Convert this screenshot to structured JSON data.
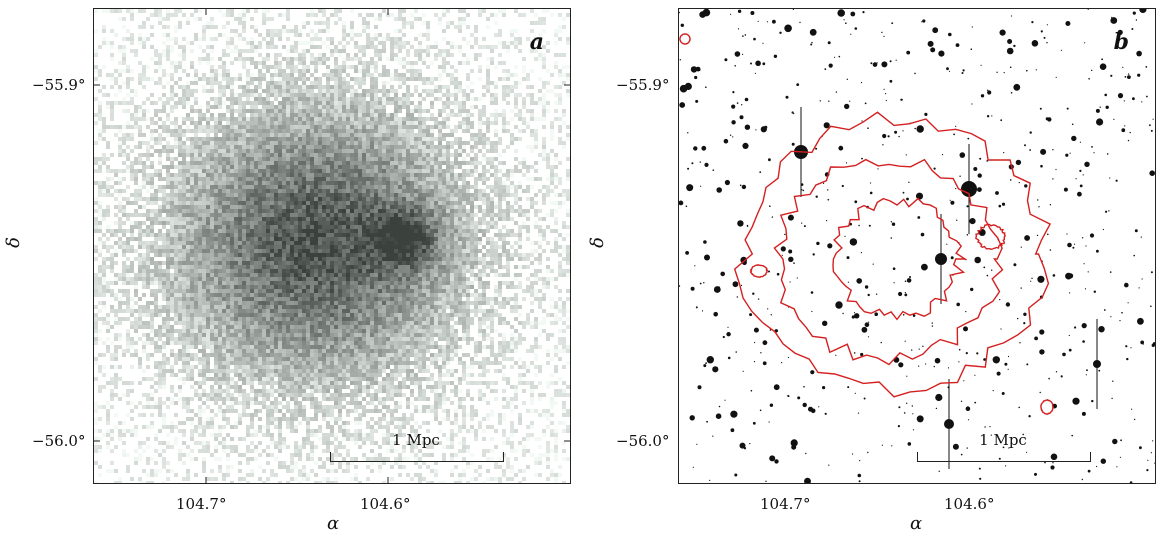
{
  "panels": [
    {
      "id": "a",
      "letter": "a",
      "scale_label": "1 Mpc",
      "xticks": [
        "104.7°",
        "104.6°"
      ],
      "yticks": [
        "−55.9°",
        "−56.0°"
      ],
      "xlabel": "α",
      "ylabel": "δ",
      "colors": {
        "image": "#4a5a4f",
        "background": "#ffffff"
      }
    },
    {
      "id": "b",
      "letter": "b",
      "scale_label": "1 Mpc",
      "xticks": [
        "104.7°",
        "104.6°"
      ],
      "yticks": [
        "−55.9°",
        "−56.0°"
      ],
      "xlabel": "α",
      "ylabel": "δ",
      "colors": {
        "contour": "#d42020",
        "stars": "#111111",
        "background": "#ffffff"
      }
    }
  ]
}
